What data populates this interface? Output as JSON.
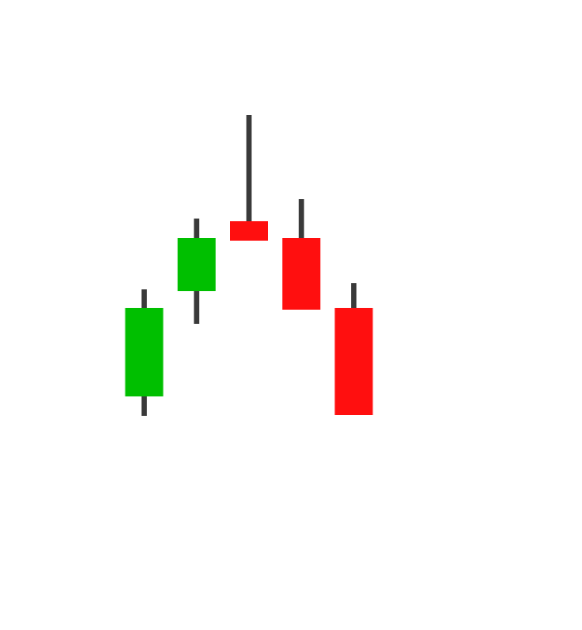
{
  "chart_data": {
    "type": "candlestick",
    "title": "",
    "xlabel": "",
    "ylabel": "",
    "grid": false,
    "legend": "none",
    "y_scale": "linear",
    "ylim": [
      0,
      712
    ],
    "colors": {
      "up": "#00bf00",
      "down": "#ff0f0f",
      "wick": "#3a3a3a",
      "background": "#ffffff"
    },
    "candles": [
      {
        "index": 1,
        "open": 264,
        "high": 385,
        "low": 242,
        "close": 364,
        "direction": "up"
      },
      {
        "index": 2,
        "open": 383,
        "high": 465,
        "low": 346,
        "close": 443,
        "direction": "up"
      },
      {
        "index": 3,
        "open": 462,
        "high": 582,
        "low": 440,
        "close": 440,
        "direction": "down"
      },
      {
        "index": 4,
        "open": 443,
        "high": 487,
        "low": 362,
        "close": 362,
        "direction": "down"
      },
      {
        "index": 5,
        "open": 364,
        "high": 392,
        "low": 243,
        "close": 243,
        "direction": "down"
      }
    ]
  }
}
